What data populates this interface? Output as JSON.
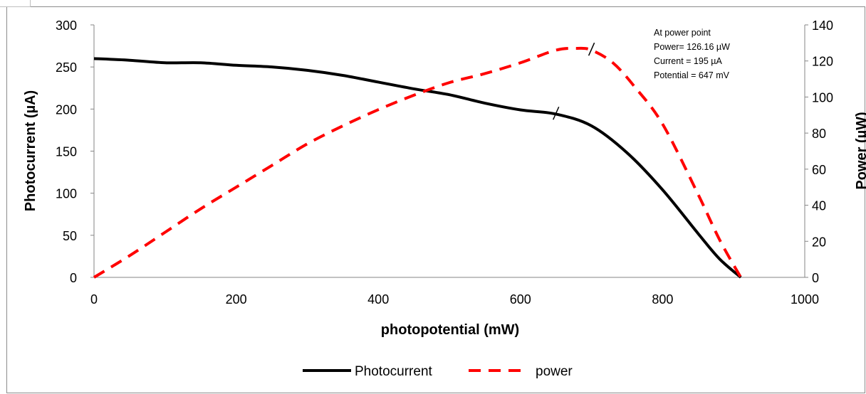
{
  "chart_data": {
    "type": "line",
    "xlabel": "photopotential (mW)",
    "ylabel": "Photocurrent (µA)",
    "y2label": "Power (µW)",
    "xlim": [
      0,
      1000
    ],
    "ylim": [
      0,
      300
    ],
    "y2lim": [
      0,
      140
    ],
    "xticks": [
      "0",
      "200",
      "400",
      "600",
      "800",
      "1000"
    ],
    "yticks": [
      "0",
      "50",
      "100",
      "150",
      "200",
      "250",
      "300"
    ],
    "y2ticks": [
      "0",
      "20",
      "40",
      "60",
      "80",
      "100",
      "120",
      "140"
    ],
    "grid": false,
    "legend_position": "bottom",
    "series": [
      {
        "name": "Photocurrent",
        "axis": "left",
        "color": "#000000",
        "style": "solid",
        "x": [
          0,
          50,
          100,
          150,
          200,
          250,
          300,
          350,
          400,
          450,
          500,
          550,
          600,
          650,
          700,
          750,
          800,
          850,
          880,
          910
        ],
        "y": [
          260,
          258,
          255,
          255,
          252,
          250,
          246,
          240,
          232,
          224,
          217,
          207,
          199,
          194,
          180,
          148,
          104,
          52,
          22,
          0
        ]
      },
      {
        "name": "power",
        "axis": "right",
        "color": "#ff0000",
        "style": "dashed",
        "x": [
          0,
          50,
          100,
          150,
          200,
          250,
          300,
          350,
          400,
          450,
          500,
          550,
          600,
          650,
          680,
          700,
          730,
          760,
          800,
          850,
          880,
          910
        ],
        "y": [
          0,
          12,
          25,
          38,
          50,
          62,
          74,
          84,
          93,
          101,
          108,
          113,
          119,
          126,
          127,
          126,
          119,
          106,
          85,
          46,
          21,
          0
        ]
      }
    ],
    "annotations": [
      "At power point",
      "Power= 126.16 µW",
      "Current = 195 µA",
      "Potential = 647 mV"
    ],
    "markers": [
      {
        "series": "Photocurrent",
        "x": 650,
        "y": 195
      },
      {
        "series": "power",
        "x": 700,
        "y": 126.5
      }
    ]
  }
}
